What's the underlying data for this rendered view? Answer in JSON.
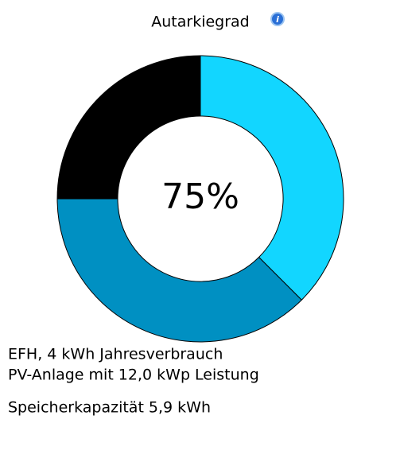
{
  "chart_data": {
    "type": "pie",
    "title": "Autarkiegrad",
    "center_label": "75%",
    "values": [
      37.5,
      37.5,
      25
    ],
    "colors": [
      "#12d6ff",
      "#0090c2",
      "#000000"
    ],
    "notes": [
      "EFH, 4 kWh Jahresverbrauch",
      "PV-Anlage mit 12,0 kWp Leistung",
      "Speicherkapazität 5,9 kWh"
    ]
  }
}
